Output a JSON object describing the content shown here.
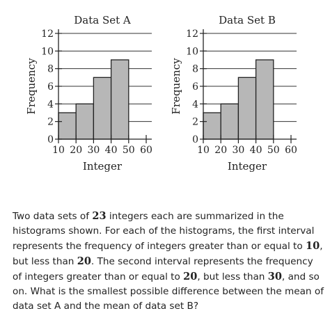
{
  "chart_data": [
    {
      "type": "bar",
      "title": "Data Set A",
      "xlabel": "Integer",
      "ylabel": "Frequency",
      "bins": [
        [
          10,
          20
        ],
        [
          20,
          30
        ],
        [
          30,
          40
        ],
        [
          40,
          50
        ]
      ],
      "values": [
        3,
        4,
        7,
        9
      ],
      "xlim": [
        10,
        60
      ],
      "ylim": [
        0,
        12
      ],
      "xticks": [
        10,
        20,
        30,
        40,
        50,
        60
      ],
      "yticks": [
        0,
        2,
        4,
        6,
        8,
        10,
        12
      ],
      "grid": "horizontal",
      "bar_color": "#b7b7b7"
    },
    {
      "type": "bar",
      "title": "Data Set B",
      "xlabel": "Integer",
      "ylabel": "Frequency",
      "bins": [
        [
          10,
          20
        ],
        [
          20,
          30
        ],
        [
          30,
          40
        ],
        [
          40,
          50
        ]
      ],
      "values": [
        3,
        4,
        7,
        9
      ],
      "xlim": [
        10,
        60
      ],
      "ylim": [
        0,
        12
      ],
      "xticks": [
        10,
        20,
        30,
        40,
        50,
        60
      ],
      "yticks": [
        0,
        2,
        4,
        6,
        8,
        10,
        12
      ],
      "grid": "horizontal",
      "bar_color": "#b7b7b7"
    }
  ],
  "question": {
    "p1": "Two data sets of ",
    "n_integers": "23",
    "p2": " integers each are summarized in the histograms shown. For each of the histograms, the first interval represents the frequency of integers greater than or equal to ",
    "v10": "10",
    "p3": ", but less than ",
    "v20a": "20",
    "p4": ". The second interval represents the frequency of integers greater than or equal to ",
    "v20b": "20",
    "p5": ", but less than ",
    "v30": "30",
    "p6": ", and so on. What is the smallest possible difference between the mean of data set A and the mean of data set B?"
  }
}
